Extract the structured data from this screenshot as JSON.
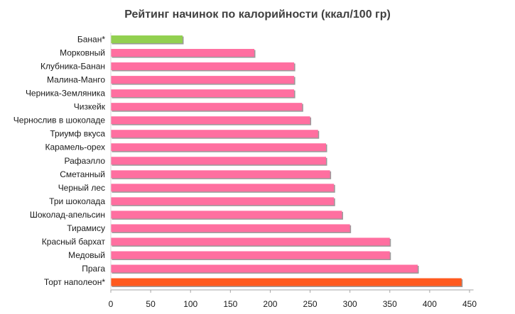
{
  "chart_data": {
    "type": "bar",
    "orientation": "horizontal",
    "title": "Рейтинг начинок по калорийности (ккал/100 гр)",
    "xlabel": "",
    "ylabel": "",
    "xlim": [
      0,
      450
    ],
    "xticks": [
      0,
      50,
      100,
      150,
      200,
      250,
      300,
      350,
      400,
      450
    ],
    "grid": false,
    "legend": "none",
    "categories": [
      "Банан*",
      "Морковный",
      "Клубника-Банан",
      "Малина-Манго",
      "Черника-Земляника",
      "Чизкейк",
      "Чернослив в шоколаде",
      "Триумф вкуса",
      "Карамель-орех",
      "Рафаэлло",
      "Сметанный",
      "Черный лес",
      "Три шоколада",
      "Шоколад-апельсин",
      "Тирамису",
      "Красный бархат",
      "Медовый",
      "Прага",
      "Торт наполеон*"
    ],
    "values": [
      90,
      180,
      230,
      230,
      230,
      240,
      250,
      260,
      270,
      270,
      275,
      280,
      280,
      290,
      300,
      350,
      350,
      385,
      440
    ],
    "colors": [
      "#92d050",
      "#ff6fa0",
      "#ff6fa0",
      "#ff6fa0",
      "#ff6fa0",
      "#ff6fa0",
      "#ff6fa0",
      "#ff6fa0",
      "#ff6fa0",
      "#ff6fa0",
      "#ff6fa0",
      "#ff6fa0",
      "#ff6fa0",
      "#ff6fa0",
      "#ff6fa0",
      "#ff6fa0",
      "#ff6fa0",
      "#ff6fa0",
      "#ff5a1f"
    ]
  }
}
